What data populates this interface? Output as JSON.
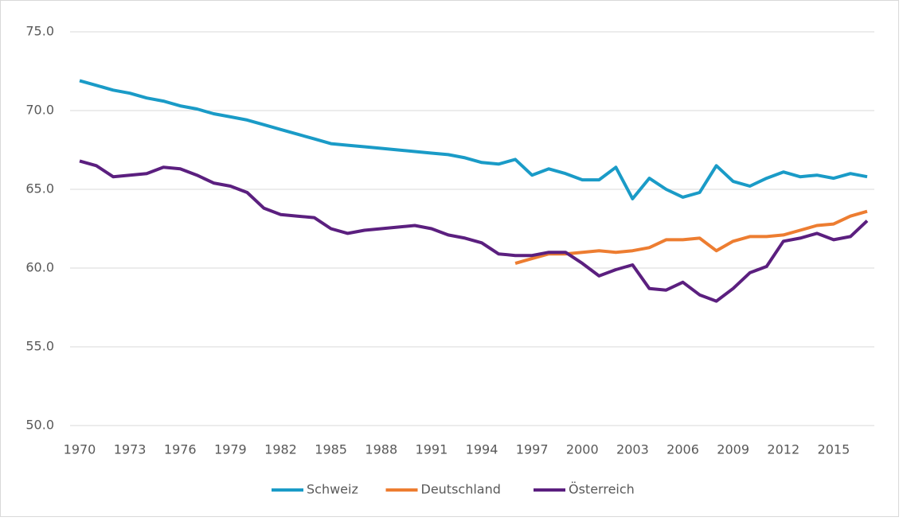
{
  "chart_data": {
    "type": "line",
    "categories": [
      "1970",
      null,
      null,
      "1973",
      null,
      null,
      "1976",
      null,
      null,
      "1979",
      null,
      null,
      "1982",
      null,
      null,
      "1985",
      null,
      null,
      "1988",
      null,
      null,
      "1991",
      null,
      null,
      "1994",
      null,
      null,
      "1997",
      null,
      null,
      "2000",
      null,
      null,
      "2003",
      null,
      null,
      "2006",
      null,
      null,
      "2009",
      null,
      null,
      "2012",
      null,
      null,
      "2015",
      null,
      null
    ],
    "series": [
      {
        "name": "Schweiz",
        "color": "#1a9bc7",
        "values": [
          71.9,
          71.6,
          71.3,
          71.1,
          70.8,
          70.6,
          70.3,
          70.1,
          69.8,
          69.6,
          69.4,
          69.1,
          68.8,
          68.5,
          68.2,
          67.9,
          67.8,
          67.7,
          67.6,
          67.5,
          67.4,
          67.3,
          67.2,
          67.0,
          66.7,
          66.6,
          66.9,
          65.9,
          66.3,
          66.0,
          65.6,
          65.6,
          66.4,
          64.4,
          65.7,
          65.0,
          64.5,
          64.8,
          66.5,
          65.5,
          65.2,
          65.7,
          66.1,
          65.8,
          65.9,
          65.7,
          66.0,
          65.8
        ]
      },
      {
        "name": "Deutschland",
        "color": "#ed7d31",
        "values": [
          null,
          null,
          null,
          null,
          null,
          null,
          null,
          null,
          null,
          null,
          null,
          null,
          null,
          null,
          null,
          null,
          null,
          null,
          null,
          null,
          null,
          null,
          null,
          null,
          null,
          null,
          60.3,
          60.6,
          60.9,
          60.9,
          61.0,
          61.1,
          61.0,
          61.1,
          61.3,
          61.8,
          61.8,
          61.9,
          61.1,
          61.7,
          62.0,
          62.0,
          62.1,
          62.4,
          62.7,
          62.8,
          63.3,
          63.6
        ]
      },
      {
        "name": "Österreich",
        "color": "#5b1f7f",
        "values": [
          66.8,
          66.5,
          65.8,
          65.9,
          66.0,
          66.4,
          66.3,
          65.9,
          65.4,
          65.2,
          64.8,
          63.8,
          63.4,
          63.3,
          63.2,
          62.5,
          62.2,
          62.4,
          62.5,
          62.6,
          62.7,
          62.5,
          62.1,
          61.9,
          61.6,
          60.9,
          60.8,
          60.8,
          61.0,
          61.0,
          60.3,
          59.5,
          59.9,
          60.2,
          58.7,
          58.6,
          59.1,
          58.3,
          57.9,
          58.7,
          59.7,
          60.1,
          61.7,
          61.9,
          62.2,
          61.8,
          62.0,
          63.0
        ]
      }
    ],
    "ylim": [
      50,
      75
    ],
    "yticks": [
      {
        "value": 50,
        "label": "50.0"
      },
      {
        "value": 55,
        "label": "55.0"
      },
      {
        "value": 60,
        "label": "60.0"
      },
      {
        "value": 65,
        "label": "65.0"
      },
      {
        "value": 70,
        "label": "70.0"
      },
      {
        "value": 75,
        "label": "75.0"
      }
    ],
    "grid": true,
    "legend": "bottom"
  }
}
